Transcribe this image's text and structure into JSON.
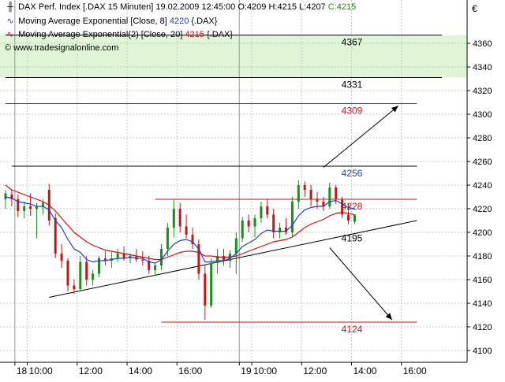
{
  "header": {
    "instrument": "DAX Perf. Index [.DAX  15 Minuten]",
    "datetime": "19.02.2009 12:45:00",
    "open": "O:4209",
    "high": "H:4215",
    "low": "L:4207",
    "close": "C:4215",
    "ema8_label": "Moving Average Exponential [Close, 8]",
    "ema8_value": "4220",
    "ema8_symbol": "{.DAX}",
    "ema20_label": "Moving Average Exponential(2) [Close, 20]",
    "ema20_value": "4215",
    "ema20_symbol": "{.DAX}",
    "website": "© www.tradesignalonline.com"
  },
  "colors": {
    "up_candle": "#1c8c1c",
    "down_candle": "#c01818",
    "ema_fast": "#1f3fd0",
    "ema_slow": "#d01010",
    "zone_fill": "#dff5d6",
    "grid": "#c8c8c8"
  },
  "chart_data": {
    "type": "candlestick",
    "currency_symbol": "€",
    "ylim": [
      4100,
      4370
    ],
    "y_ticks": [
      4100,
      4120,
      4140,
      4160,
      4180,
      4200,
      4220,
      4240,
      4260,
      4280,
      4300,
      4320,
      4340,
      4360
    ],
    "grid": true,
    "x_labels": [
      {
        "t": 1.5,
        "label": "18"
      },
      {
        "t": 3.5,
        "label": "10:00"
      },
      {
        "t": 11.5,
        "label": "12:00"
      },
      {
        "t": 19.5,
        "label": "14:00"
      },
      {
        "t": 27.5,
        "label": "16:00"
      },
      {
        "t": 37.5,
        "label": "19"
      },
      {
        "t": 39.5,
        "label": "10:00"
      },
      {
        "t": 47.5,
        "label": "12:00"
      },
      {
        "t": 55.5,
        "label": "14:00"
      },
      {
        "t": 63.5,
        "label": "16:00"
      }
    ],
    "day_separators": [
      1.5,
      37.5
    ],
    "candles": [
      {
        "o": 4228,
        "h": 4236,
        "l": 4220,
        "c": 4233
      },
      {
        "o": 4232,
        "h": 4236,
        "l": 4222,
        "c": 4228
      },
      {
        "o": 4228,
        "h": 4232,
        "l": 4213,
        "c": 4218
      },
      {
        "o": 4218,
        "h": 4226,
        "l": 4212,
        "c": 4222
      },
      {
        "o": 4222,
        "h": 4233,
        "l": 4214,
        "c": 4220
      },
      {
        "o": 4220,
        "h": 4225,
        "l": 4195,
        "c": 4222
      },
      {
        "o": 4222,
        "h": 4228,
        "l": 4215,
        "c": 4225
      },
      {
        "o": 4236,
        "h": 4241,
        "l": 4206,
        "c": 4210
      },
      {
        "o": 4212,
        "h": 4216,
        "l": 4178,
        "c": 4182
      },
      {
        "o": 4182,
        "h": 4190,
        "l": 4170,
        "c": 4176
      },
      {
        "o": 4176,
        "h": 4178,
        "l": 4150,
        "c": 4155
      },
      {
        "o": 4155,
        "h": 4160,
        "l": 4148,
        "c": 4152
      },
      {
        "o": 4152,
        "h": 4180,
        "l": 4150,
        "c": 4175
      },
      {
        "o": 4175,
        "h": 4180,
        "l": 4155,
        "c": 4160
      },
      {
        "o": 4160,
        "h": 4168,
        "l": 4155,
        "c": 4165
      },
      {
        "o": 4165,
        "h": 4180,
        "l": 4162,
        "c": 4178
      },
      {
        "o": 4178,
        "h": 4184,
        "l": 4172,
        "c": 4176
      },
      {
        "o": 4176,
        "h": 4183,
        "l": 4170,
        "c": 4178
      },
      {
        "o": 4178,
        "h": 4186,
        "l": 4175,
        "c": 4182
      },
      {
        "o": 4182,
        "h": 4188,
        "l": 4176,
        "c": 4178
      },
      {
        "o": 4178,
        "h": 4182,
        "l": 4174,
        "c": 4180
      },
      {
        "o": 4180,
        "h": 4186,
        "l": 4175,
        "c": 4177
      },
      {
        "o": 4177,
        "h": 4184,
        "l": 4172,
        "c": 4176
      },
      {
        "o": 4176,
        "h": 4180,
        "l": 4165,
        "c": 4168
      },
      {
        "o": 4168,
        "h": 4174,
        "l": 4164,
        "c": 4172
      },
      {
        "o": 4172,
        "h": 4190,
        "l": 4168,
        "c": 4186
      },
      {
        "o": 4186,
        "h": 4208,
        "l": 4180,
        "c": 4204
      },
      {
        "o": 4204,
        "h": 4228,
        "l": 4196,
        "c": 4220
      },
      {
        "o": 4220,
        "h": 4225,
        "l": 4200,
        "c": 4205
      },
      {
        "o": 4205,
        "h": 4215,
        "l": 4195,
        "c": 4198
      },
      {
        "o": 4198,
        "h": 4204,
        "l": 4186,
        "c": 4190
      },
      {
        "o": 4190,
        "h": 4194,
        "l": 4160,
        "c": 4165
      },
      {
        "o": 4165,
        "h": 4172,
        "l": 4126,
        "c": 4138
      },
      {
        "o": 4138,
        "h": 4178,
        "l": 4136,
        "c": 4174
      },
      {
        "o": 4174,
        "h": 4186,
        "l": 4165,
        "c": 4180
      },
      {
        "o": 4180,
        "h": 4186,
        "l": 4172,
        "c": 4176
      },
      {
        "o": 4176,
        "h": 4185,
        "l": 4170,
        "c": 4182
      },
      {
        "o": 4182,
        "h": 4200,
        "l": 4165,
        "c": 4195
      },
      {
        "o": 4195,
        "h": 4213,
        "l": 4192,
        "c": 4210
      },
      {
        "o": 4210,
        "h": 4215,
        "l": 4200,
        "c": 4205
      },
      {
        "o": 4205,
        "h": 4215,
        "l": 4196,
        "c": 4212
      },
      {
        "o": 4212,
        "h": 4226,
        "l": 4208,
        "c": 4222
      },
      {
        "o": 4222,
        "h": 4228,
        "l": 4212,
        "c": 4215
      },
      {
        "o": 4215,
        "h": 4220,
        "l": 4195,
        "c": 4200
      },
      {
        "o": 4200,
        "h": 4208,
        "l": 4195,
        "c": 4204
      },
      {
        "o": 4204,
        "h": 4212,
        "l": 4198,
        "c": 4200
      },
      {
        "o": 4200,
        "h": 4230,
        "l": 4196,
        "c": 4226
      },
      {
        "o": 4226,
        "h": 4244,
        "l": 4220,
        "c": 4240
      },
      {
        "o": 4240,
        "h": 4243,
        "l": 4230,
        "c": 4236
      },
      {
        "o": 4236,
        "h": 4240,
        "l": 4222,
        "c": 4228
      },
      {
        "o": 4228,
        "h": 4234,
        "l": 4220,
        "c": 4226
      },
      {
        "o": 4226,
        "h": 4230,
        "l": 4218,
        "c": 4222
      },
      {
        "o": 4222,
        "h": 4242,
        "l": 4220,
        "c": 4238
      },
      {
        "o": 4238,
        "h": 4240,
        "l": 4224,
        "c": 4228
      },
      {
        "o": 4228,
        "h": 4230,
        "l": 4212,
        "c": 4215
      },
      {
        "o": 4215,
        "h": 4224,
        "l": 4207,
        "c": 4210
      },
      {
        "o": 4209,
        "h": 4215,
        "l": 4207,
        "c": 4215
      }
    ],
    "ema_fast": [
      4230,
      4229,
      4226,
      4225,
      4224,
      4222,
      4222,
      4219,
      4210,
      4204,
      4194,
      4186,
      4183,
      4177,
      4175,
      4176,
      4176,
      4177,
      4178,
      4178,
      4179,
      4178,
      4178,
      4175,
      4174,
      4177,
      4184,
      4190,
      4193,
      4194,
      4192,
      4186,
      4175,
      4175,
      4176,
      4176,
      4178,
      4182,
      4188,
      4191,
      4194,
      4199,
      4202,
      4201,
      4201,
      4201,
      4206,
      4214,
      4219,
      4221,
      4222,
      4222,
      4226,
      4227,
      4224,
      4221,
      4220
    ],
    "ema_slow": [
      4240,
      4236,
      4234,
      4232,
      4230,
      4228,
      4226,
      4223,
      4218,
      4212,
      4206,
      4200,
      4196,
      4192,
      4189,
      4187,
      4185,
      4184,
      4183,
      4182,
      4181,
      4180,
      4179,
      4178,
      4177,
      4177,
      4179,
      4181,
      4183,
      4184,
      4184,
      4183,
      4180,
      4180,
      4179,
      4179,
      4179,
      4180,
      4182,
      4184,
      4186,
      4188,
      4190,
      4192,
      4193,
      4194,
      4196,
      4200,
      4204,
      4207,
      4209,
      4211,
      4214,
      4216,
      4217,
      4216,
      4215
    ],
    "resistance_zone": [
      4331,
      4367
    ],
    "horizontal_levels": [
      {
        "value": 4367,
        "label": "4367",
        "color": "#000000",
        "from_t": 0,
        "to_t": 70
      },
      {
        "value": 4331,
        "label": "4331",
        "color": "#000000",
        "from_t": 0,
        "to_t": 70
      },
      {
        "value": 4309,
        "label": "4309",
        "color": "#d01010",
        "from_t": 0,
        "to_t": 66
      },
      {
        "value": 4256,
        "label": "4256",
        "color": "#1f3fd0",
        "line_color": "#000000",
        "from_t": 1,
        "to_t": 66
      },
      {
        "value": 4228,
        "label": "4228",
        "color": "#d01010",
        "from_t": 24,
        "to_t": 66
      },
      {
        "value": 4124,
        "label": "4124",
        "color": "#d01010",
        "from_t": 25,
        "to_t": 66
      }
    ],
    "trendline": {
      "t1": 7,
      "y1": 4145,
      "t2": 66,
      "y2": 4210
    },
    "trendline_label": {
      "value": 4195,
      "label": "4195",
      "t": 52
    },
    "arrows": [
      {
        "t1": 51,
        "y1": 4255,
        "t2": 63,
        "y2": 4307
      },
      {
        "t1": 52,
        "y1": 4187,
        "t2": 62,
        "y2": 4126
      }
    ]
  }
}
